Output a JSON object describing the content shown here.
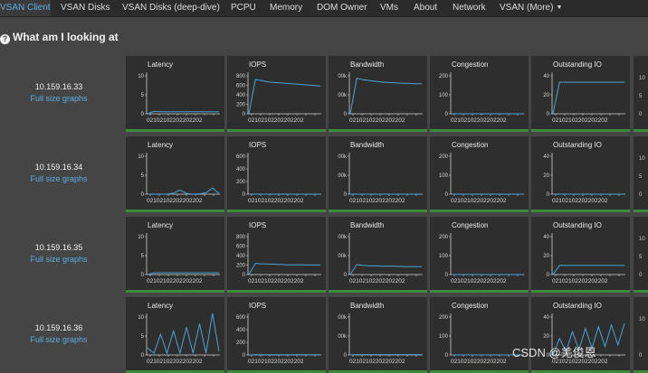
{
  "nav": {
    "items": [
      {
        "label": "VSAN Client",
        "active": true
      },
      {
        "label": "VSAN Disks"
      },
      {
        "label": "VSAN Disks (deep-dive)"
      },
      {
        "label": "PCPU"
      },
      {
        "label": "Memory"
      },
      {
        "label": "DOM Owner"
      },
      {
        "label": "VMs"
      },
      {
        "label": "About"
      },
      {
        "label": "Network"
      },
      {
        "label": "VSAN (More)",
        "dropdown": true
      }
    ]
  },
  "page": {
    "help_icon": "question-circle-icon",
    "title": "What am I looking at",
    "full_size_link": "Full size graphs",
    "watermark": "CSDN @羌俊恩"
  },
  "graph_titles": [
    "Latency",
    "IOPS",
    "Bandwidth",
    "Congestion",
    "Outstanding IO"
  ],
  "x_tick_label": "02102102202202202",
  "colors": {
    "line": "#4aa3d6",
    "axis": "#cfcfcf",
    "status_ok": "#3c8a3c",
    "link": "#5aaee6"
  },
  "hosts": [
    {
      "name": "10.159.16.33",
      "graphs": [
        {
          "y_ticks": [
            "10",
            "5",
            "0"
          ],
          "y_max": 12,
          "values": [
            0,
            0.7,
            0.6,
            0.6,
            0.6,
            0.6,
            0.6,
            0.6,
            0.6,
            0.6,
            0.6,
            0.6
          ]
        },
        {
          "y_ticks": [
            "800",
            "600",
            "400",
            "200",
            "0"
          ],
          "y_max": 850,
          "values": [
            0,
            700,
            680,
            650,
            640,
            630,
            620,
            610,
            600,
            590,
            580,
            570
          ]
        },
        {
          "y_ticks": [
            "00k",
            "00k",
            "0"
          ],
          "y_max": 105,
          "values": [
            0,
            90,
            86,
            84,
            82,
            80,
            79,
            78,
            77,
            77,
            76,
            76
          ]
        },
        {
          "y_ticks": [
            "200",
            "100",
            "0"
          ],
          "y_max": 260,
          "values": [
            0,
            0,
            0,
            0,
            0,
            0,
            0,
            0,
            0,
            0,
            0,
            0
          ]
        },
        {
          "y_ticks": [
            "40",
            "20",
            "0"
          ],
          "y_max": 50,
          "values": [
            0,
            38,
            38,
            38,
            38,
            38,
            38,
            38,
            38,
            38,
            38,
            38
          ]
        }
      ],
      "sliver_ticks": [
        "10",
        "5",
        "0"
      ]
    },
    {
      "name": "10.159.16.34",
      "graphs": [
        {
          "y_ticks": [
            "10",
            "5",
            "0"
          ],
          "y_max": 12,
          "values": [
            0,
            0,
            0,
            0,
            0.3,
            1.2,
            0.2,
            0,
            0.1,
            0.4,
            1.8,
            0.2
          ]
        },
        {
          "y_ticks": [
            "600",
            "400",
            "200",
            "0"
          ],
          "y_max": 700,
          "values": [
            0,
            0,
            0,
            0,
            0,
            0,
            0,
            0,
            0,
            0,
            0,
            0
          ]
        },
        {
          "y_ticks": [
            "00k",
            "00k",
            "0"
          ],
          "y_max": 105,
          "values": [
            0,
            0,
            0,
            0,
            0,
            0,
            0,
            0,
            0,
            0,
            0,
            0
          ]
        },
        {
          "y_ticks": [
            "200",
            "100",
            "0"
          ],
          "y_max": 260,
          "values": [
            0,
            0,
            0,
            0,
            0,
            0,
            0,
            0,
            0,
            0,
            0,
            0
          ]
        },
        {
          "y_ticks": [
            "40",
            "20",
            "0"
          ],
          "y_max": 50,
          "values": [
            0,
            0,
            0,
            0,
            0,
            0,
            0,
            0,
            0,
            0,
            0,
            0
          ]
        }
      ],
      "sliver_ticks": [
        "10",
        "5",
        "0"
      ]
    },
    {
      "name": "10.159.16.35",
      "graphs": [
        {
          "y_ticks": [
            "10",
            "5",
            "0"
          ],
          "y_max": 12,
          "values": [
            0,
            0.5,
            0.5,
            0.5,
            0.5,
            0.5,
            0.5,
            0.5,
            0.5,
            0.5,
            0.5,
            0.5
          ]
        },
        {
          "y_ticks": [
            "800",
            "600",
            "400",
            "200",
            "0"
          ],
          "y_max": 850,
          "values": [
            0,
            230,
            220,
            215,
            210,
            205,
            200,
            200,
            198,
            196,
            195,
            195
          ]
        },
        {
          "y_ticks": [
            "00k",
            "00k",
            "0"
          ],
          "y_max": 105,
          "values": [
            0,
            25,
            23,
            22,
            22,
            21,
            21,
            21,
            20,
            20,
            20,
            20
          ]
        },
        {
          "y_ticks": [
            "200",
            "100",
            "0"
          ],
          "y_max": 260,
          "values": [
            0,
            0,
            0,
            0,
            0,
            0,
            0,
            0,
            0,
            0,
            0,
            0
          ]
        },
        {
          "y_ticks": [
            "40",
            "20",
            "0"
          ],
          "y_max": 50,
          "values": [
            0,
            11,
            11,
            11,
            11,
            11,
            11,
            11,
            11,
            11,
            11,
            11
          ]
        }
      ],
      "sliver_ticks": [
        "10",
        "5",
        "0"
      ]
    },
    {
      "name": "10.159.16.36",
      "graphs": [
        {
          "y_ticks": [
            "10",
            "5",
            "0"
          ],
          "y_max": 12,
          "values": [
            2,
            0.5,
            6,
            0.5,
            7,
            0.5,
            8,
            0.5,
            9,
            0.5,
            12,
            1
          ]
        },
        {
          "y_ticks": [
            "600",
            "400",
            "200",
            "0"
          ],
          "y_max": 700,
          "values": [
            0,
            5,
            5,
            5,
            5,
            5,
            5,
            5,
            5,
            5,
            5,
            5
          ]
        },
        {
          "y_ticks": [
            "00k",
            "00k",
            "0"
          ],
          "y_max": 105,
          "values": [
            0,
            1,
            1,
            1,
            1,
            1,
            1,
            1,
            1,
            1,
            1,
            1
          ]
        },
        {
          "y_ticks": [
            "200",
            "100",
            "0"
          ],
          "y_max": 260,
          "values": [
            0,
            0,
            0,
            0,
            0,
            0,
            0,
            0,
            0,
            0,
            0,
            0
          ]
        },
        {
          "y_ticks": [
            "40",
            "20",
            "0"
          ],
          "y_max": 50,
          "values": [
            0,
            20,
            4,
            28,
            6,
            32,
            8,
            34,
            10,
            36,
            12,
            38
          ]
        }
      ],
      "sliver_ticks": [
        "10",
        "0"
      ]
    }
  ]
}
